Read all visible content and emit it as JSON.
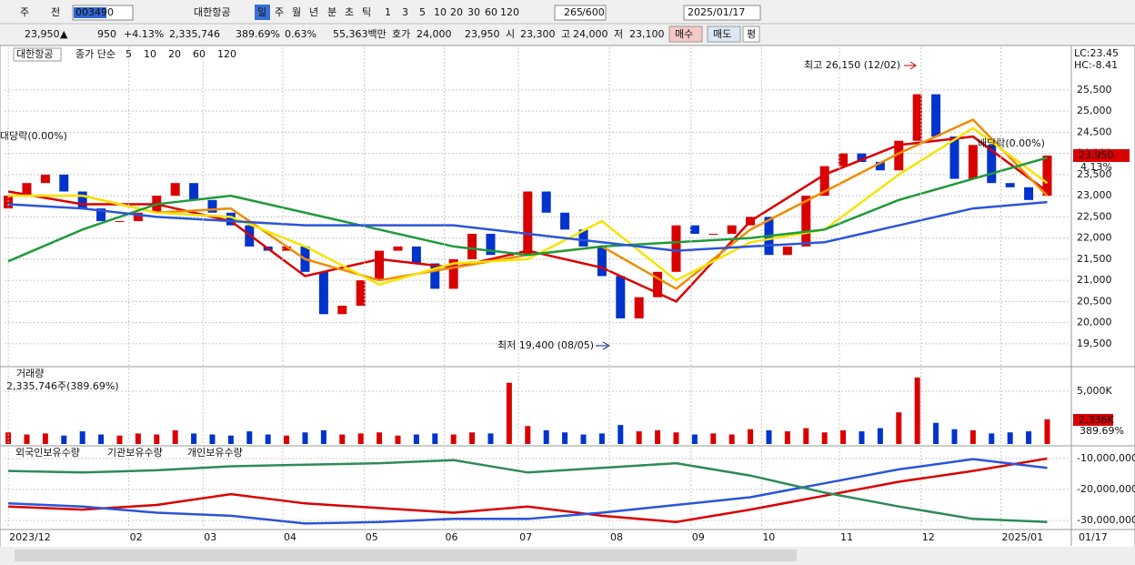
{
  "toolbar": [
    "주",
    "전",
    "003490",
    "대한항공",
    "일",
    "주",
    "월",
    "년",
    "분",
    "초",
    "틱",
    "1",
    "3",
    "5",
    "10",
    "20",
    "30",
    "60",
    "120",
    "265",
    "/600",
    "2025/01/17"
  ],
  "quote": [
    "23,950",
    "▲",
    "950",
    "+4.13%",
    "2,335,746",
    "389.69%",
    "0.63%",
    "55,363백만",
    "호가",
    "24,000",
    "23,950",
    "시",
    "23,300",
    "고",
    "24,000",
    "저",
    "23,100",
    "매수",
    "매도",
    "평"
  ],
  "chart_data": [
    {
      "type": "candlestick",
      "title": "대한항공",
      "subtitle": "종가 단순",
      "up_color": "#d90000",
      "down_color": "#0033cc",
      "xlim": [
        -0.2,
        57.3
      ],
      "open": [
        22700,
        23000,
        23300,
        23500,
        23100,
        22700,
        22400,
        22400,
        22600,
        23000,
        23300,
        22900,
        22600,
        22300,
        21800,
        21700,
        21800,
        21200,
        20200,
        20400,
        21000,
        21700,
        21800,
        21400,
        20800,
        21500,
        22100,
        21600,
        21600,
        23100,
        22600,
        22200,
        21800,
        21100,
        20100,
        20600,
        21200,
        22300,
        22100,
        22100,
        22300,
        22500,
        21600,
        21800,
        23000,
        23700,
        24000,
        23800,
        23600,
        24300,
        25400,
        24400,
        23400,
        24200,
        23300,
        23200,
        23000
      ],
      "close": [
        23000,
        23300,
        23500,
        23100,
        22700,
        22400,
        22400,
        22600,
        23000,
        23300,
        22900,
        22600,
        22300,
        21800,
        21700,
        21800,
        21200,
        20200,
        20400,
        21000,
        21700,
        21800,
        21400,
        20800,
        21500,
        22100,
        21600,
        21600,
        23100,
        22600,
        22200,
        21800,
        21100,
        20100,
        20600,
        21200,
        22300,
        22100,
        22100,
        22300,
        22500,
        21600,
        21800,
        23000,
        23700,
        24000,
        23800,
        23600,
        24300,
        25400,
        24400,
        23400,
        24200,
        23300,
        23200,
        22900,
        23950
      ],
      "value_labels": [
        null,
        null,
        null,
        null,
        null,
        null,
        null,
        null,
        null,
        null,
        null,
        null,
        null,
        null,
        null,
        null,
        null,
        null,
        null,
        null,
        null,
        null,
        null,
        null,
        null,
        null,
        null,
        null,
        null,
        null,
        null,
        null,
        null,
        null,
        null,
        null,
        null,
        null,
        null,
        null,
        null,
        null,
        null,
        null,
        null,
        null,
        null,
        null,
        null,
        null,
        null,
        null,
        null,
        null,
        null,
        null,
        "23,950"
      ],
      "series": [
        {
          "name": "5",
          "color": "#d90000",
          "x": [
            0,
            4,
            8,
            12,
            16,
            20,
            24,
            28,
            32,
            36,
            40,
            44,
            48,
            52,
            56
          ],
          "values": [
            23100,
            22800,
            22800,
            22400,
            21100,
            21500,
            21300,
            21700,
            21300,
            20500,
            22400,
            23500,
            24200,
            24400,
            23100
          ]
        },
        {
          "name": "10",
          "color": "#f08c00",
          "x": [
            0,
            4,
            8,
            12,
            16,
            20,
            24,
            28,
            32,
            36,
            40,
            44,
            48,
            52,
            56
          ],
          "values": [
            23000,
            23000,
            22600,
            22700,
            21500,
            21000,
            21300,
            21600,
            21800,
            20800,
            22200,
            23100,
            24000,
            24800,
            23000
          ]
        },
        {
          "name": "20",
          "color": "#f5e400",
          "x": [
            0,
            4,
            8,
            12,
            16,
            20,
            24,
            28,
            32,
            36,
            40,
            44,
            48,
            52,
            56
          ],
          "values": [
            23000,
            23000,
            22600,
            22500,
            21800,
            20900,
            21400,
            21500,
            22400,
            21000,
            21900,
            22200,
            23500,
            24600,
            23300
          ]
        },
        {
          "name": "60",
          "color": "#1f9a3a",
          "x": [
            0,
            4,
            8,
            12,
            16,
            20,
            24,
            28,
            32,
            36,
            40,
            44,
            48,
            52,
            56
          ],
          "values": [
            21450,
            22200,
            22800,
            23000,
            22600,
            22200,
            21800,
            21600,
            21800,
            21900,
            22000,
            22200,
            22900,
            23400,
            23900
          ]
        },
        {
          "name": "120",
          "color": "#2b55d8",
          "x": [
            0,
            4,
            8,
            12,
            16,
            20,
            24,
            28,
            32,
            36,
            40,
            44,
            48,
            52,
            56
          ],
          "values": [
            22800,
            22700,
            22500,
            22400,
            22300,
            22300,
            22300,
            22100,
            21900,
            21700,
            21800,
            21900,
            22300,
            22700,
            22850
          ]
        }
      ],
      "ylim": [
        18980,
        26510
      ],
      "yticks": [
        {
          "value": 19500,
          "label": "19,500"
        },
        {
          "value": 20000,
          "label": "20,000"
        },
        {
          "value": 20500,
          "label": "20,500"
        },
        {
          "value": 21000,
          "label": "21,000"
        },
        {
          "value": 21500,
          "label": "21,500"
        },
        {
          "value": 22000,
          "label": "22,000"
        },
        {
          "value": 22500,
          "label": "22,500"
        },
        {
          "value": 23000,
          "label": "23,000"
        },
        {
          "value": 23500,
          "label": "23,500"
        },
        {
          "value": 24000,
          "label": "24,000"
        },
        {
          "value": 24500,
          "label": "24,500"
        },
        {
          "value": 25000,
          "label": "25,000"
        },
        {
          "value": 25500,
          "label": "25,500"
        }
      ],
      "annotations": [
        "최고 26,150 (12/02)",
        "최저 19,400 (08/05)",
        "대당락(0.00%)",
        "배당락(0.00%)",
        "LC:23.45",
        "HC:-8.41",
        "4.13%"
      ],
      "grid": true
    },
    {
      "type": "bar",
      "title": "거래량",
      "subtitle": "2,335,746주(389.69%)",
      "xlim": [
        -0.2,
        57.3
      ],
      "values": [
        1100000,
        900000,
        1000000,
        800000,
        1200000,
        900000,
        800000,
        1000000,
        900000,
        1300000,
        1000000,
        900000,
        800000,
        1200000,
        900000,
        800000,
        1100000,
        1300000,
        900000,
        1000000,
        1100000,
        800000,
        900000,
        1000000,
        900000,
        1100000,
        1000000,
        5800000,
        1700000,
        1300000,
        1100000,
        900000,
        1000000,
        1800000,
        1200000,
        1300000,
        1100000,
        900000,
        1000000,
        900000,
        1400000,
        1300000,
        1200000,
        1500000,
        1100000,
        1300000,
        1200000,
        1500000,
        3000000,
        6300000,
        2000000,
        1400000,
        1300000,
        1000000,
        1100000,
        1200000,
        2335746
      ],
      "value_labels": [
        null,
        null,
        null,
        null,
        null,
        null,
        null,
        null,
        null,
        null,
        null,
        null,
        null,
        null,
        null,
        null,
        null,
        null,
        null,
        null,
        null,
        null,
        null,
        null,
        null,
        null,
        null,
        null,
        null,
        null,
        null,
        null,
        null,
        null,
        null,
        null,
        null,
        null,
        null,
        null,
        null,
        null,
        null,
        null,
        null,
        null,
        null,
        null,
        null,
        null,
        null,
        null,
        null,
        null,
        null,
        null,
        "2,336K"
      ],
      "annotations": [
        "389.69%"
      ],
      "ylim": [
        0,
        7155000
      ],
      "yticks": [
        {
          "value": 5000000,
          "label": "5,000K"
        }
      ],
      "grid": true
    },
    {
      "type": "line",
      "xlim": [
        -0.2,
        57.3
      ],
      "series": [
        {
          "name": "외국인보유수량",
          "color": "#d90000",
          "x": [
            0,
            4,
            8,
            12,
            16,
            20,
            24,
            28,
            32,
            36,
            40,
            44,
            48,
            52,
            56
          ],
          "values": [
            -25500000,
            -26500000,
            -25000000,
            -21500000,
            -24500000,
            -26000000,
            -27500000,
            -25500000,
            -28500000,
            -30500000,
            -26500000,
            -22000000,
            -17500000,
            -14000000,
            -10000000
          ]
        },
        {
          "name": "기관보유수량",
          "color": "#2b55d8",
          "x": [
            0,
            4,
            8,
            12,
            16,
            20,
            24,
            28,
            32,
            36,
            40,
            44,
            48,
            52,
            56
          ],
          "values": [
            -24500000,
            -25500000,
            -27500000,
            -28500000,
            -31000000,
            -30500000,
            -29500000,
            -29500000,
            -27500000,
            -25000000,
            -22500000,
            -18000000,
            -13500000,
            -10200000,
            -13000000
          ]
        },
        {
          "name": "개인보유수량",
          "color": "#2e8b57",
          "x": [
            0,
            4,
            8,
            12,
            16,
            20,
            24,
            28,
            32,
            36,
            40,
            44,
            48,
            52,
            56
          ],
          "values": [
            -14000000,
            -14500000,
            -13800000,
            -12500000,
            -12000000,
            -11500000,
            -10500000,
            -14500000,
            -13000000,
            -11500000,
            -15500000,
            -21000000,
            -25500000,
            -29500000,
            -30500000
          ]
        }
      ],
      "ylim": [
        -32350000,
        -6470000
      ],
      "yticks": [
        {
          "value": -10000000,
          "label": "-10,000,000"
        },
        {
          "value": -20000000,
          "label": "-20,000,000"
        },
        {
          "value": -30000000,
          "label": "-30,000,000"
        }
      ],
      "xticks": [
        {
          "value": 0,
          "label": "2023/12"
        },
        {
          "value": 6.5,
          "label": "02"
        },
        {
          "value": 10.5,
          "label": "03"
        },
        {
          "value": 14.8,
          "label": "04"
        },
        {
          "value": 19.2,
          "label": "05"
        },
        {
          "value": 23.5,
          "label": "06"
        },
        {
          "value": 27.5,
          "label": "07"
        },
        {
          "value": 32.4,
          "label": "08"
        },
        {
          "value": 36.8,
          "label": "09"
        },
        {
          "value": 40.6,
          "label": "10"
        },
        {
          "value": 44.8,
          "label": "11"
        },
        {
          "value": 49.2,
          "label": "12"
        },
        {
          "value": 53.5,
          "label": "2025/01"
        }
      ],
      "last_date": "01/17",
      "grid": true
    }
  ]
}
